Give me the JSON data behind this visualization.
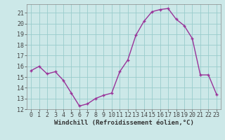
{
  "x": [
    0,
    1,
    2,
    3,
    4,
    5,
    6,
    7,
    8,
    9,
    10,
    11,
    12,
    13,
    14,
    15,
    16,
    17,
    18,
    19,
    20,
    21,
    22,
    23
  ],
  "y": [
    15.6,
    16.0,
    15.3,
    15.5,
    14.7,
    13.5,
    12.3,
    12.5,
    13.0,
    13.3,
    13.5,
    15.5,
    16.6,
    18.9,
    20.2,
    21.1,
    21.3,
    21.4,
    20.4,
    19.8,
    18.6,
    15.2,
    15.2,
    13.4
  ],
  "line_color": "#993399",
  "marker": "+",
  "bg_color": "#cce8e8",
  "grid_color": "#99cccc",
  "xlabel": "Windchill (Refroidissement éolien,°C)",
  "xlim_min": -0.5,
  "xlim_max": 23.5,
  "ylim_min": 12,
  "ylim_max": 21.8,
  "yticks": [
    12,
    13,
    14,
    15,
    16,
    17,
    18,
    19,
    20,
    21
  ],
  "xticks": [
    0,
    1,
    2,
    3,
    4,
    5,
    6,
    7,
    8,
    9,
    10,
    11,
    12,
    13,
    14,
    15,
    16,
    17,
    18,
    19,
    20,
    21,
    22,
    23
  ],
  "xlabel_fontsize": 6.5,
  "tick_fontsize": 6.0,
  "line_width": 1.0,
  "marker_size": 3.5,
  "marker_ew": 1.0
}
